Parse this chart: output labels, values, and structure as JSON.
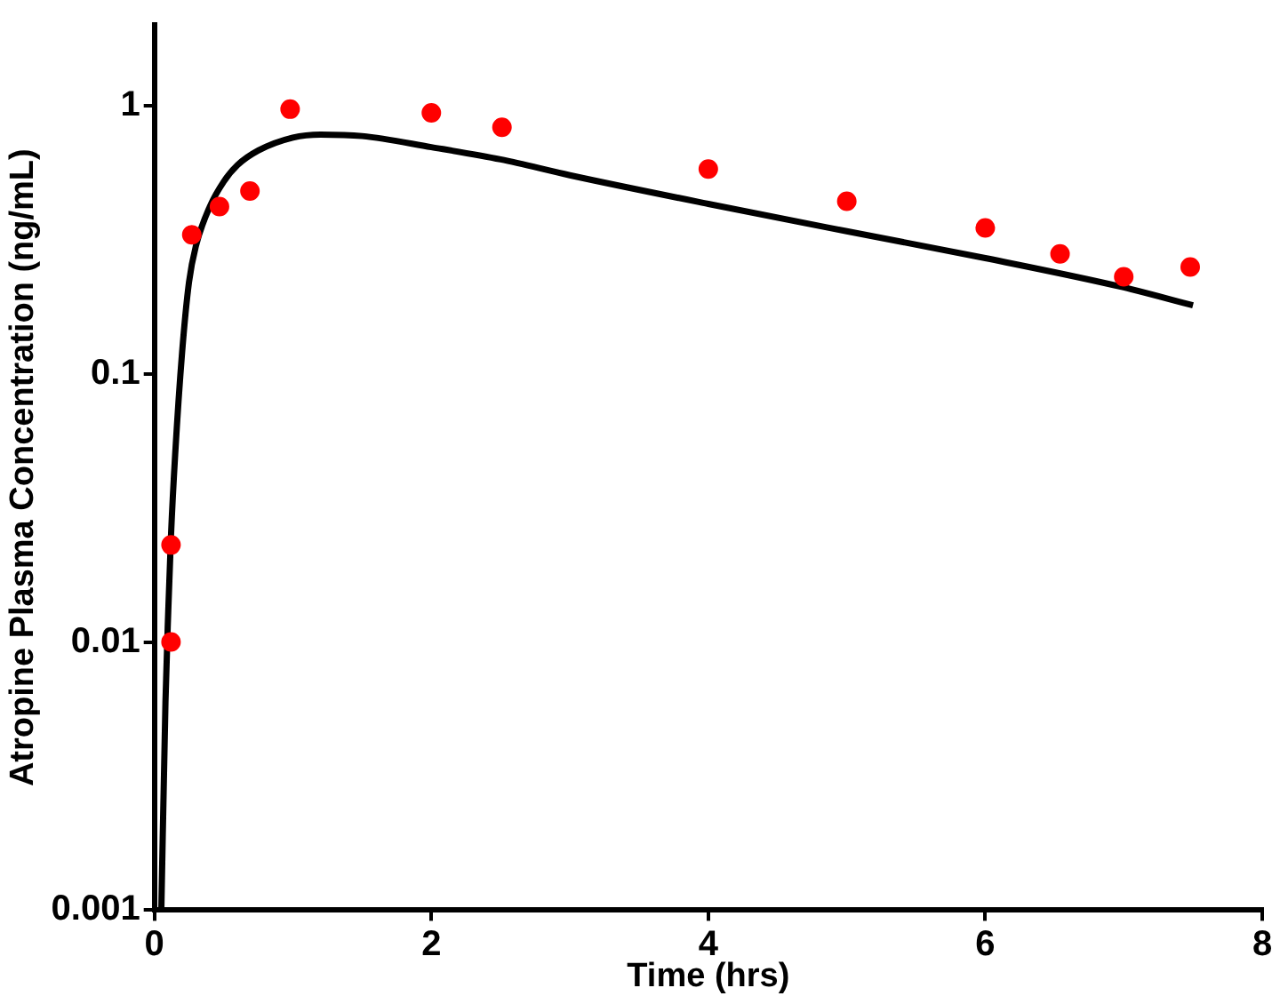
{
  "chart_data": {
    "type": "scatter",
    "xlabel": "Time (hrs)",
    "ylabel": "Atropine Plasma Concentration (ng/mL)",
    "series": [
      {
        "type": "scatter",
        "marker": "circle",
        "color": "#ff0000",
        "x": [
          0.12,
          0.12,
          0.27,
          0.47,
          0.69,
          0.98,
          2.0,
          2.51,
          4.0,
          5.0,
          6.0,
          6.54,
          7.0,
          7.48
        ],
        "values": [
          0.01,
          0.023,
          0.33,
          0.42,
          0.48,
          0.97,
          0.94,
          0.83,
          0.58,
          0.44,
          0.35,
          0.28,
          0.23,
          0.25
        ]
      },
      {
        "type": "line",
        "color": "#000000",
        "x": [
          0.05,
          0.08,
          0.1,
          0.12,
          0.15,
          0.2,
          0.25,
          0.3,
          0.4,
          0.5,
          0.6,
          0.75,
          1.0,
          1.2,
          1.5,
          2,
          2.5,
          3,
          4,
          5,
          6,
          7,
          7.5
        ],
        "values": [
          0.001,
          0.006,
          0.013,
          0.025,
          0.05,
          0.12,
          0.22,
          0.3,
          0.42,
          0.52,
          0.6,
          0.68,
          0.76,
          0.78,
          0.77,
          0.7,
          0.63,
          0.55,
          0.43,
          0.34,
          0.27,
          0.21,
          0.18
        ]
      }
    ],
    "xlim": [
      0,
      8
    ],
    "xticks": [
      0,
      2,
      4,
      6,
      8
    ],
    "ylim": [
      0.001,
      2
    ],
    "yticks": [
      0.001,
      0.01,
      0.1,
      1
    ],
    "log": "y",
    "grid": false,
    "legend": false
  }
}
